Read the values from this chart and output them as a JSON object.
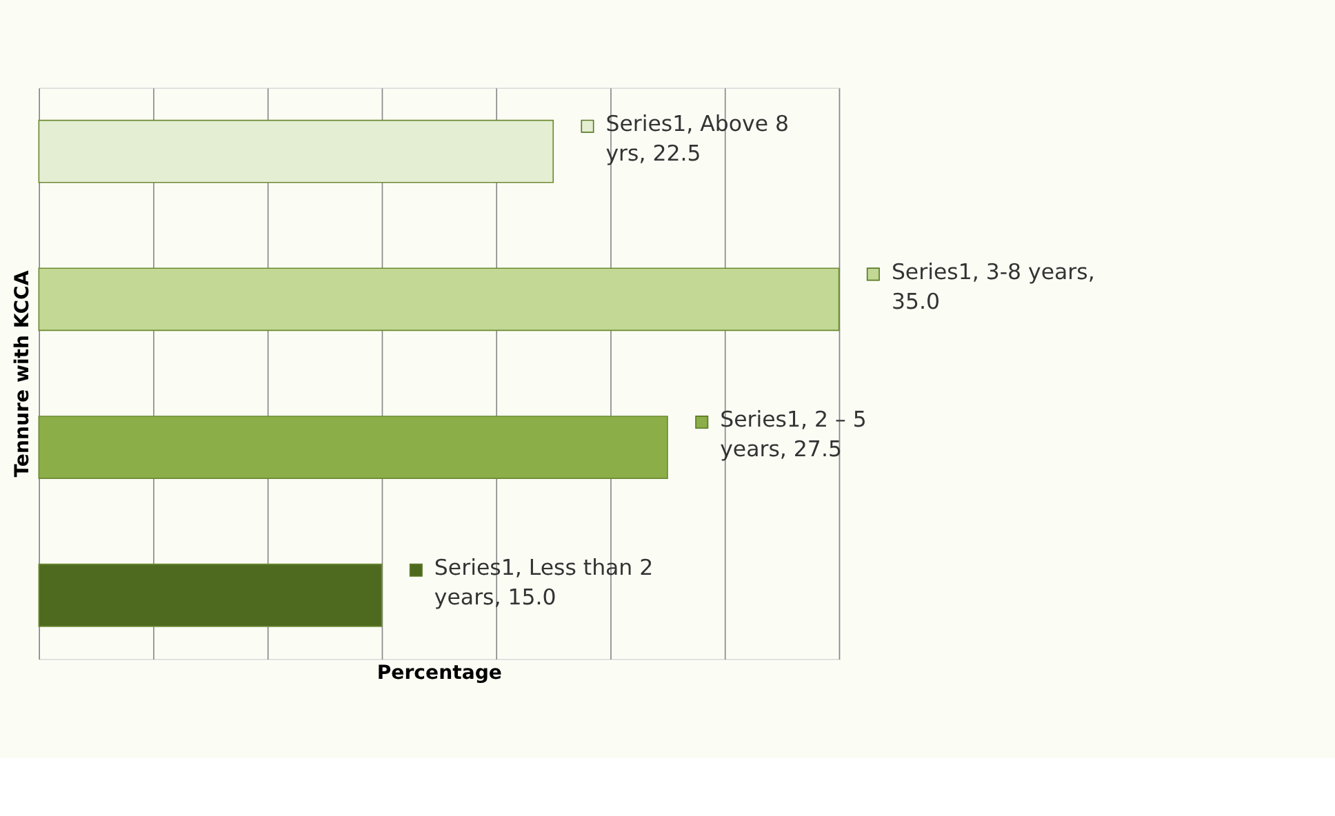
{
  "chart_data": {
    "type": "bar",
    "orientation": "horizontal",
    "xlabel": "Percentage",
    "ylabel": "Tennure with KCCA",
    "categories": [
      null,
      null,
      null,
      null
    ],
    "values": [
      22.5,
      35.0,
      27.5,
      15.0
    ],
    "colors": [
      "#e4eed2",
      "#c2d894",
      "#8cae48",
      "#4d6a1f"
    ],
    "value_labels": [
      "Series1, Above 8 yrs, 22.5",
      "Series1, 3-8 years, 35.0",
      "Series1, 2 – 5 years, 27.5",
      "Series1, Less than 2 years, 15.0"
    ],
    "xlim": [
      0,
      35
    ],
    "xticks": [
      {
        "value": 0,
        "label": null
      },
      {
        "value": 5,
        "label": null
      },
      {
        "value": 10,
        "label": null
      },
      {
        "value": 15,
        "label": null
      },
      {
        "value": 20,
        "label": null
      },
      {
        "value": 25,
        "label": null
      },
      {
        "value": 30,
        "label": null
      },
      {
        "value": 35,
        "label": null
      }
    ],
    "grid": "x",
    "tick_labels": false
  }
}
